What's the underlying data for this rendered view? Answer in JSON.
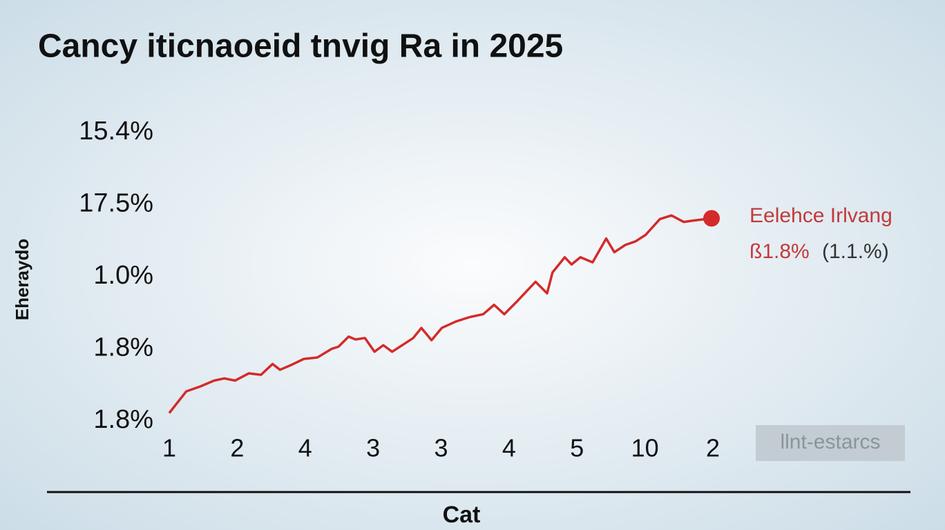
{
  "chart_data": {
    "type": "line",
    "title": "Cancy iticnaoeid tnvig Ra in 2025",
    "y_label": "Eherаydo",
    "x_label": "Cat",
    "annotations": [
      "Eelehce Irlvang",
      "ß1.8%",
      "(1.1.%)"
    ],
    "xlim": [
      0,
      8
    ],
    "xticks": [
      {
        "value": 0,
        "label": "1"
      },
      {
        "value": 1,
        "label": "2"
      },
      {
        "value": 2,
        "label": "4"
      },
      {
        "value": 3,
        "label": "3"
      },
      {
        "value": 4,
        "label": "3"
      },
      {
        "value": 5,
        "label": "4"
      },
      {
        "value": 6,
        "label": "5"
      },
      {
        "value": 7,
        "label": "10"
      },
      {
        "value": 8,
        "label": "2"
      }
    ],
    "ylim": [
      0,
      4
    ],
    "yticks": [
      {
        "value": 0,
        "label": "1.8%"
      },
      {
        "value": 1,
        "label": "1.8%"
      },
      {
        "value": 2,
        "label": "1.0%"
      },
      {
        "value": 3,
        "label": "17.5%"
      },
      {
        "value": 4,
        "label": "15.4%"
      }
    ],
    "legend": "right",
    "series": [
      {
        "name": "llnt-estarcs",
        "color": "#d42a2a",
        "x": [
          0.0,
          0.25,
          0.46,
          0.66,
          0.81,
          0.97,
          1.17,
          1.35,
          1.52,
          1.63,
          1.78,
          1.98,
          2.18,
          2.39,
          2.49,
          2.64,
          2.74,
          2.88,
          3.02,
          3.15,
          3.28,
          3.46,
          3.59,
          3.71,
          3.86,
          4.01,
          4.22,
          4.42,
          4.62,
          4.78,
          4.93,
          5.13,
          5.39,
          5.56,
          5.64,
          5.82,
          5.92,
          6.05,
          6.23,
          6.43,
          6.55,
          6.71,
          6.86,
          7.01,
          7.22,
          7.39,
          7.57,
          7.72,
          7.98
        ],
        "values": [
          0.11,
          0.41,
          0.48,
          0.56,
          0.59,
          0.56,
          0.66,
          0.64,
          0.79,
          0.71,
          0.77,
          0.86,
          0.88,
          1.0,
          1.03,
          1.17,
          1.13,
          1.15,
          0.96,
          1.05,
          0.96,
          1.07,
          1.15,
          1.29,
          1.12,
          1.29,
          1.38,
          1.44,
          1.48,
          1.61,
          1.48,
          1.67,
          1.93,
          1.77,
          2.06,
          2.27,
          2.17,
          2.27,
          2.2,
          2.53,
          2.34,
          2.44,
          2.49,
          2.58,
          2.8,
          2.85,
          2.76,
          2.78,
          2.81
        ]
      }
    ]
  }
}
